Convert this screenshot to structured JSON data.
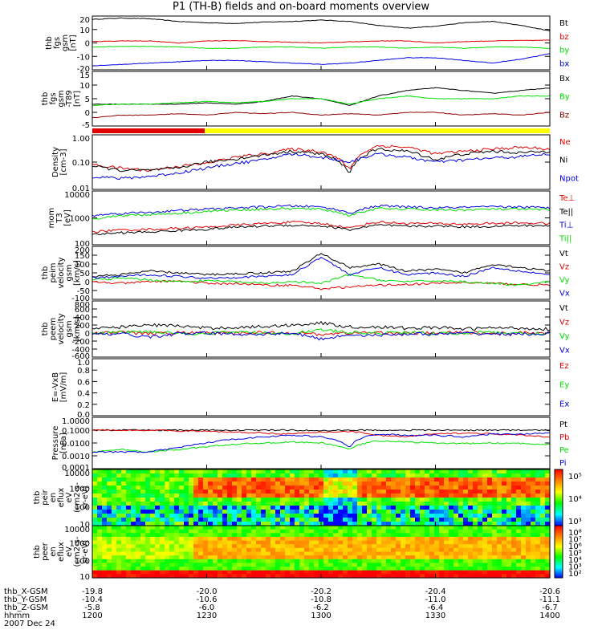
{
  "title": "P1 (TH-B) fields and on-board moments overview",
  "date": "2007 Dec 24",
  "ephemeris": {
    "rows": [
      {
        "name": "thb_X-GSM",
        "values": [
          "-19.8",
          "-20.0",
          "-20.2",
          "-20.4",
          "-20.6"
        ]
      },
      {
        "name": "thb_Y-GSM",
        "values": [
          "-10.4",
          "-10.6",
          "-10.8",
          "-11.0",
          "-11.1"
        ]
      },
      {
        "name": "thb_Z-GSM",
        "values": [
          "-5.8",
          "-6.0",
          "-6.2",
          "-6.4",
          "-6.7"
        ]
      },
      {
        "name": "hhmm",
        "values": [
          "1200",
          "1230",
          "1300",
          "1330",
          "1400"
        ]
      }
    ]
  },
  "colors": {
    "black": "#000000",
    "red": "#e00000",
    "green": "#00e000",
    "blue": "#0000e0",
    "darkred": "#8b0000",
    "yellow": "#ffff00"
  },
  "chart_data": [
    {
      "type": "line",
      "id": "fgs",
      "ylabel": [
        "thb",
        "fgs",
        "gsm",
        "[nT]"
      ],
      "ylim": [
        -20,
        20
      ],
      "yticks": [
        "20",
        "10",
        "0",
        "-10",
        "-20"
      ],
      "series": [
        {
          "name": "Bt",
          "color": "#000000",
          "values": [
            17.5,
            18.5,
            18,
            16,
            15,
            14.5,
            15.5,
            16,
            17,
            16,
            13,
            11,
            12.5,
            15,
            16,
            13,
            9
          ]
        },
        {
          "name": "bz",
          "color": "#e00000",
          "values": [
            1,
            1.5,
            1.5,
            0,
            1.5,
            1.8,
            1,
            0.5,
            0,
            0.8,
            1.5,
            1.5,
            0,
            1,
            1.5,
            1.8,
            2
          ]
        },
        {
          "name": "by",
          "color": "#00e000",
          "values": [
            -3,
            -2.5,
            -2.5,
            -3,
            -4,
            -4,
            -3,
            -3,
            -4,
            -3,
            -3,
            -4,
            -3,
            -4,
            -3,
            -3,
            -4
          ]
        },
        {
          "name": "bx",
          "color": "#0000e0",
          "values": [
            -17,
            -16,
            -15,
            -14,
            -13,
            -13,
            -14,
            -15,
            -16,
            -15,
            -13,
            -11,
            -11,
            -13,
            -15,
            -12,
            -8
          ]
        }
      ]
    },
    {
      "type": "line",
      "id": "fgs-t89",
      "ylabel": [
        "thb",
        "fgs",
        "gsm",
        "-T89",
        "[nT]"
      ],
      "ylim": [
        -5,
        15
      ],
      "yticks": [
        "15",
        "10",
        "5",
        "0",
        "-5"
      ],
      "series": [
        {
          "name": "Bx",
          "color": "#000000",
          "values": [
            3,
            3,
            3,
            3,
            3.5,
            3,
            4,
            6,
            5,
            2.5,
            6,
            8,
            9,
            8,
            7,
            8,
            9
          ]
        },
        {
          "name": "By",
          "color": "#00e000",
          "values": [
            2.5,
            3,
            3,
            3.5,
            4,
            3.5,
            4,
            5,
            5,
            3,
            5,
            6,
            5,
            5,
            5,
            6,
            6
          ]
        },
        {
          "name": "Bz",
          "color": "#8b0000",
          "values": [
            -2,
            -1,
            -1,
            -0.5,
            -1,
            0,
            -0.5,
            0,
            -1,
            -0.5,
            -1,
            0,
            0,
            -1,
            -0.5,
            -1,
            0
          ]
        }
      ]
    },
    {
      "type": "line",
      "id": "density",
      "scale": "log",
      "ylabel": [
        "Density",
        "[cm-3]"
      ],
      "ylim": [
        0.01,
        1
      ],
      "yticks": [
        "1.00",
        "0.10",
        "0.01"
      ],
      "series": [
        {
          "name": "Ne",
          "color": "#e00000",
          "values": [
            0.08,
            0.06,
            0.05,
            0.07,
            0.09,
            0.15,
            0.2,
            0.3,
            0.25,
            0.05,
            0.4,
            0.35,
            0.2,
            0.25,
            0.3,
            0.35,
            0.3
          ]
        },
        {
          "name": "Ni",
          "color": "#000000",
          "values": [
            0.07,
            0.05,
            0.05,
            0.06,
            0.1,
            0.13,
            0.18,
            0.25,
            0.2,
            0.04,
            0.3,
            0.25,
            0.12,
            0.2,
            0.25,
            0.22,
            0.25
          ]
        },
        {
          "name": "Npot",
          "color": "#0000e0",
          "values": [
            0.03,
            0.025,
            0.03,
            0.04,
            0.06,
            0.09,
            0.12,
            0.2,
            0.15,
            0.1,
            0.2,
            0.15,
            0.1,
            0.12,
            0.14,
            0.16,
            0.2
          ]
        }
      ]
    },
    {
      "type": "line",
      "id": "temperature",
      "scale": "log",
      "ylabel": [
        "mom",
        "T3",
        "[eV]"
      ],
      "ylim": [
        30,
        10000
      ],
      "yticks": [
        "10000",
        "1000",
        "100"
      ],
      "series": [
        {
          "name": "Te⊥",
          "color": "#e00000",
          "values": [
            120,
            150,
            160,
            180,
            200,
            250,
            300,
            350,
            300,
            180,
            350,
            300,
            300,
            280,
            300,
            320,
            300
          ]
        },
        {
          "name": "Te||",
          "color": "#000000",
          "values": [
            90,
            110,
            120,
            140,
            160,
            200,
            230,
            250,
            230,
            150,
            250,
            220,
            230,
            210,
            220,
            240,
            230
          ]
        },
        {
          "name": "Ti⊥",
          "color": "#0000e0",
          "values": [
            700,
            900,
            1000,
            1200,
            1400,
            1600,
            1800,
            2000,
            1800,
            900,
            2000,
            1800,
            1600,
            1700,
            1800,
            1800,
            1600
          ]
        },
        {
          "name": "Ti||",
          "color": "#00e000",
          "values": [
            500,
            700,
            800,
            900,
            1100,
            1300,
            1400,
            1500,
            1400,
            700,
            1500,
            1400,
            1300,
            1300,
            1400,
            1400,
            1300
          ]
        }
      ]
    },
    {
      "type": "line",
      "id": "peim-velocity",
      "ylabel": [
        "thb",
        "peim",
        "velocity",
        "gsm",
        "[km/s]"
      ],
      "ylim": [
        -100,
        200
      ],
      "yticks": [
        "200",
        "150",
        "100",
        "50",
        "0",
        "-50",
        "-100"
      ],
      "series": [
        {
          "name": "Vt",
          "color": "#000000",
          "values": [
            30,
            40,
            60,
            50,
            40,
            45,
            50,
            60,
            160,
            80,
            100,
            60,
            70,
            50,
            100,
            80,
            60
          ]
        },
        {
          "name": "Vz",
          "color": "#e00000",
          "values": [
            0,
            -10,
            0,
            5,
            -10,
            -10,
            -20,
            -20,
            -40,
            -30,
            -20,
            -15,
            -10,
            -5,
            -10,
            -15,
            -20
          ]
        },
        {
          "name": "Vy",
          "color": "#00e000",
          "values": [
            10,
            20,
            10,
            0,
            5,
            0,
            -10,
            0,
            -10,
            40,
            10,
            0,
            5,
            0,
            -10,
            -20,
            0
          ]
        },
        {
          "name": "Vx",
          "color": "#0000e0",
          "values": [
            20,
            30,
            40,
            30,
            20,
            25,
            30,
            40,
            140,
            40,
            80,
            40,
            50,
            30,
            80,
            60,
            40
          ]
        }
      ]
    },
    {
      "type": "line",
      "id": "peem-velocity",
      "ylabel": [
        "thb",
        "peem",
        "velocity",
        "gsm",
        "[km/s]"
      ],
      "ylim": [
        -600,
        800
      ],
      "yticks": [
        "800",
        "600",
        "400",
        "200",
        "0",
        "-200",
        "-400",
        "-600"
      ],
      "series": [
        {
          "name": "Vt",
          "color": "#000000",
          "values": [
            100,
            150,
            200,
            180,
            120,
            140,
            160,
            200,
            250,
            150,
            150,
            120,
            140,
            100,
            130,
            120,
            100
          ]
        },
        {
          "name": "Vz",
          "color": "#e00000",
          "values": [
            0,
            20,
            -20,
            10,
            0,
            -10,
            20,
            0,
            -30,
            0,
            10,
            -10,
            0,
            10,
            -10,
            0,
            10
          ]
        },
        {
          "name": "Vy",
          "color": "#00e000",
          "values": [
            -20,
            20,
            40,
            0,
            -20,
            30,
            0,
            -10,
            80,
            10,
            0,
            20,
            -20,
            0,
            20,
            -10,
            0
          ]
        },
        {
          "name": "Vx",
          "color": "#0000e0",
          "values": [
            -40,
            -20,
            -100,
            -20,
            0,
            -30,
            -20,
            0,
            -150,
            -40,
            -60,
            -20,
            -30,
            -10,
            -20,
            -30,
            -20
          ]
        }
      ]
    },
    {
      "type": "line",
      "id": "exb",
      "ylabel": [
        "E=-VxB",
        "[mV/m]"
      ],
      "ylim": [
        0,
        1
      ],
      "yticks": [
        "1.0",
        "0.8",
        "0.6",
        "0.4",
        "0.2",
        "0.0"
      ],
      "series": [
        {
          "name": "Ez",
          "color": "#e00000",
          "values": []
        },
        {
          "name": "Ey",
          "color": "#00e000",
          "values": []
        },
        {
          "name": "Ex",
          "color": "#0000e0",
          "values": []
        }
      ]
    },
    {
      "type": "line",
      "id": "pressure",
      "scale": "log",
      "ylabel": [
        "Pressure",
        "[nPa]"
      ],
      "ylim": [
        0.0001,
        1
      ],
      "yticks": [
        "1.0000",
        "0.1000",
        "0.0100",
        "0.0010",
        "0.0001"
      ],
      "series": [
        {
          "name": "Pt",
          "color": "#000000",
          "values": [
            0.1,
            0.1,
            0.1,
            0.1,
            0.1,
            0.1,
            0.1,
            0.1,
            0.09,
            0.1,
            0.1,
            0.1,
            0.1,
            0.1,
            0.1,
            0.1,
            0.1
          ]
        },
        {
          "name": "Pb",
          "color": "#e00000",
          "values": [
            0.1,
            0.1,
            0.1,
            0.09,
            0.08,
            0.07,
            0.06,
            0.05,
            0.07,
            0.08,
            0.04,
            0.03,
            0.05,
            0.06,
            0.05,
            0.04,
            0.03
          ]
        },
        {
          "name": "Pe",
          "color": "#00e000",
          "values": [
            0.002,
            0.003,
            0.002,
            0.003,
            0.005,
            0.008,
            0.01,
            0.012,
            0.01,
            0.003,
            0.015,
            0.012,
            0.01,
            0.009,
            0.01,
            0.009,
            0.008
          ]
        },
        {
          "name": "Pi",
          "color": "#0000e0",
          "values": [
            0.002,
            0.002,
            0.002,
            0.004,
            0.01,
            0.02,
            0.03,
            0.04,
            0.03,
            0.004,
            0.05,
            0.04,
            0.04,
            0.03,
            0.05,
            0.05,
            0.06
          ]
        }
      ]
    },
    {
      "type": "heatmap",
      "id": "peir-spectrogram",
      "ylabel": [
        "thb",
        "peir",
        "en",
        "eflux",
        "eV",
        "(cm2-s-",
        "sr-eV)"
      ],
      "ylim": [
        10,
        20000
      ],
      "yticks": [
        "10000",
        "1000",
        "100",
        "10"
      ],
      "colorbar_ticks": [
        "10⁵",
        "10⁴",
        "10³"
      ]
    },
    {
      "type": "heatmap",
      "id": "peer-spectrogram",
      "ylabel": [
        "thb",
        "peer",
        "en",
        "eflux",
        "eV",
        "(cm2-s-",
        "sr-eV)"
      ],
      "ylim": [
        7,
        20000
      ],
      "yticks": [
        "10000",
        "1000",
        "100",
        "10"
      ],
      "colorbar_ticks": [
        "10⁸",
        "10⁷",
        "10⁶",
        "10⁵",
        "10⁴",
        "10³",
        "10²"
      ]
    }
  ]
}
